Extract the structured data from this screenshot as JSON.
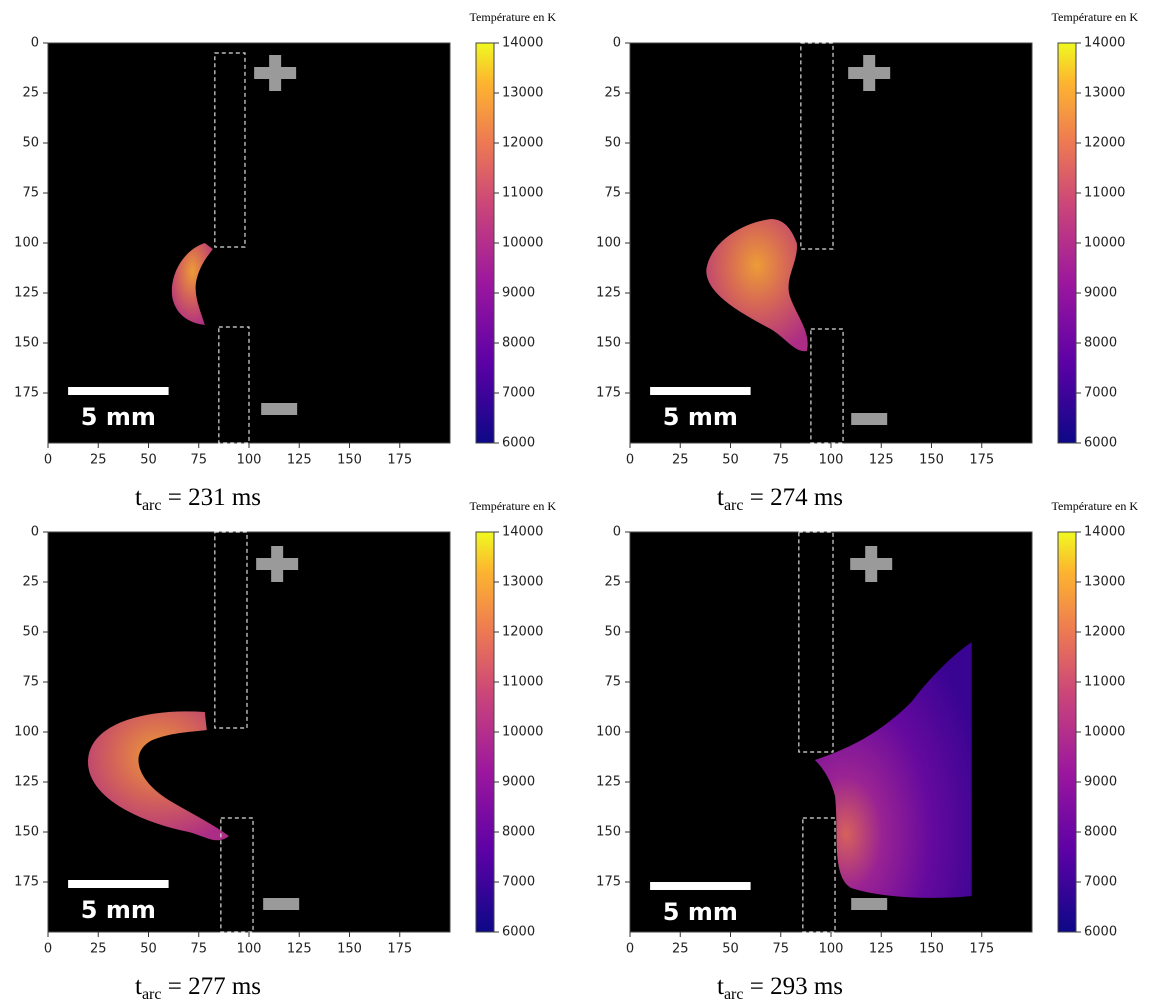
{
  "chart_data": [
    {
      "type": "heatmap",
      "colormap": "plasma",
      "xlim": [
        0,
        200
      ],
      "ylim": [
        200,
        0
      ],
      "xticks": [
        0,
        25,
        50,
        75,
        100,
        125,
        150,
        175
      ],
      "yticks": [
        0,
        25,
        50,
        75,
        100,
        125,
        150,
        175
      ],
      "colorbar": {
        "label": "Température en K",
        "lim": [
          6000,
          14000
        ],
        "ticks": [
          6000,
          7000,
          8000,
          9000,
          10000,
          11000,
          12000,
          13000,
          14000
        ]
      },
      "scale_bar": "5 mm",
      "caption": [
        "t",
        "arc",
        " = 231 ms"
      ]
    },
    {
      "type": "heatmap",
      "colormap": "plasma",
      "xlim": [
        0,
        200
      ],
      "ylim": [
        200,
        0
      ],
      "xticks": [
        0,
        25,
        50,
        75,
        100,
        125,
        150,
        175
      ],
      "yticks": [
        0,
        25,
        50,
        75,
        100,
        125,
        150,
        175
      ],
      "colorbar": {
        "label": "Température en K",
        "lim": [
          6000,
          14000
        ],
        "ticks": [
          6000,
          7000,
          8000,
          9000,
          10000,
          11000,
          12000,
          13000,
          14000
        ]
      },
      "scale_bar": "5 mm",
      "caption": [
        "t",
        "arc",
        " = 274 ms"
      ]
    },
    {
      "type": "heatmap",
      "colormap": "plasma",
      "xlim": [
        0,
        200
      ],
      "ylim": [
        200,
        0
      ],
      "xticks": [
        0,
        25,
        50,
        75,
        100,
        125,
        150,
        175
      ],
      "yticks": [
        0,
        25,
        50,
        75,
        100,
        125,
        150,
        175
      ],
      "colorbar": {
        "label": "Température en K",
        "lim": [
          6000,
          14000
        ],
        "ticks": [
          6000,
          7000,
          8000,
          9000,
          10000,
          11000,
          12000,
          13000,
          14000
        ]
      },
      "scale_bar": "5 mm",
      "caption": [
        "t",
        "arc",
        " = 277 ms"
      ]
    },
    {
      "type": "heatmap",
      "colormap": "plasma",
      "xlim": [
        0,
        200
      ],
      "ylim": [
        200,
        0
      ],
      "xticks": [
        0,
        25,
        50,
        75,
        100,
        125,
        150,
        175
      ],
      "yticks": [
        0,
        25,
        50,
        75,
        100,
        125,
        150,
        175
      ],
      "colorbar": {
        "label": "Température en K",
        "lim": [
          6000,
          14000
        ],
        "ticks": [
          6000,
          7000,
          8000,
          9000,
          10000,
          11000,
          12000,
          13000,
          14000
        ]
      },
      "scale_bar": "5 mm",
      "caption": [
        "t",
        "arc",
        " = 293 ms"
      ]
    }
  ]
}
